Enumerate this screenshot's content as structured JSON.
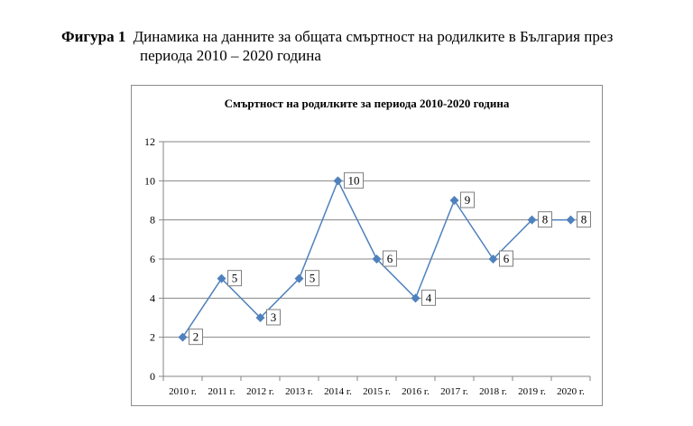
{
  "caption": {
    "figure_label": "Фигура 1",
    "text_line1": "Динамика на данните за общата смъртност на родилките в България през",
    "text_line2": "периода 2010 – 2020 година"
  },
  "chart_data": {
    "type": "line",
    "title": "Смъртност на родилките за периода 2010-2020 година",
    "xlabel": "",
    "ylabel": "",
    "categories": [
      "2010 г.",
      "2011 г.",
      "2012 г.",
      "2013 г.",
      "2014 г.",
      "2015 г.",
      "2016 г.",
      "2017 г.",
      "2018 г.",
      "2019 г.",
      "2020 г."
    ],
    "series": [
      {
        "values": [
          2,
          5,
          3,
          5,
          10,
          6,
          4,
          9,
          6,
          8,
          8
        ]
      }
    ],
    "ylim": [
      0,
      12
    ],
    "yticks": [
      0,
      2,
      4,
      6,
      8,
      10,
      12
    ],
    "grid": true,
    "data_labels": true,
    "marker": "diamond",
    "colors": {
      "line": "#4f81bd",
      "grid": "#868686",
      "label_border": "#7f7f7f"
    }
  }
}
